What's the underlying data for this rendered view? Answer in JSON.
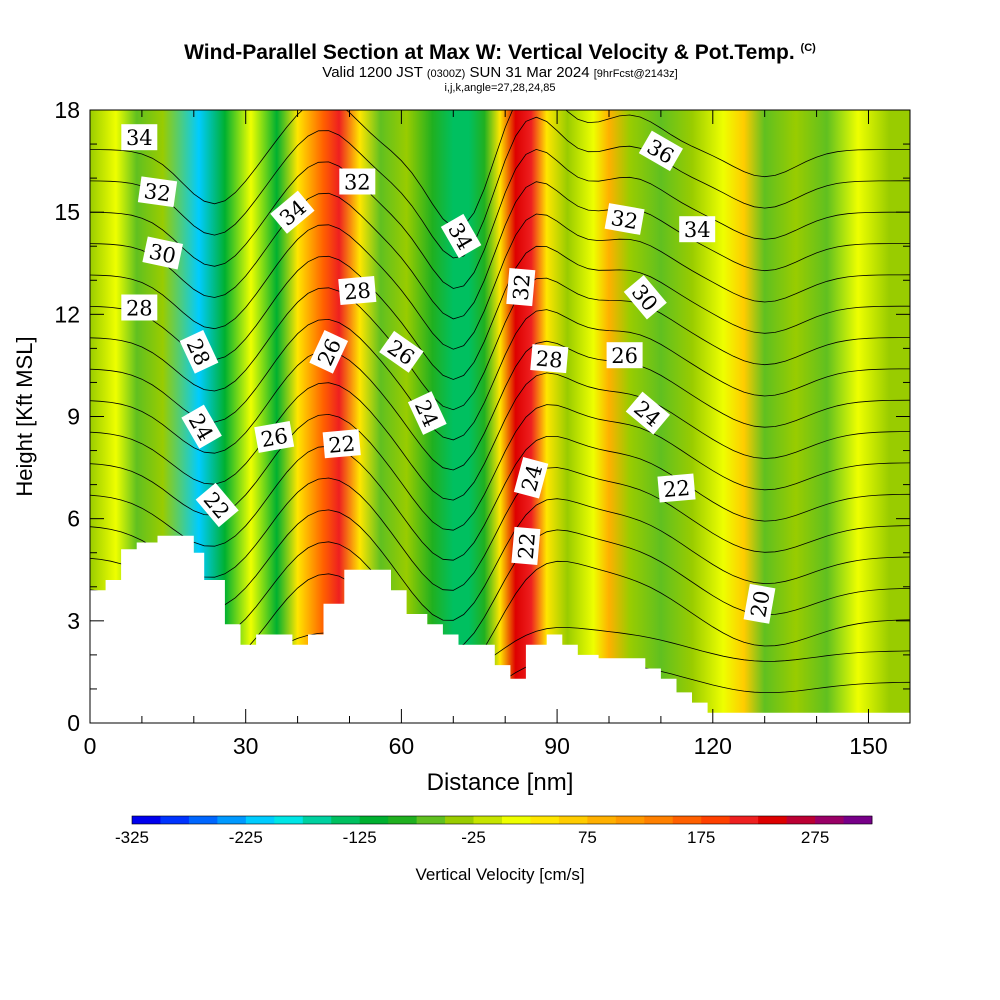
{
  "title": {
    "main": "Wind-Parallel Section at Max W: Vertical Velocity & Pot.Temp.",
    "copyright": "(C)",
    "valid_prefix": "Valid 1200 JST",
    "valid_utc": "(0300Z)",
    "valid_date": "SUN 31 Mar 2024",
    "forecast_info": "[9hrFcst@2143z]",
    "params": "i,j,k,angle=27,28,24,85"
  },
  "colors": {
    "frame": "#000000",
    "terrain": "#ffffff",
    "contour": "#000000"
  },
  "chart_data": {
    "type": "heatmap",
    "xlabel": "Distance [nm]",
    "ylabel": "Height [Kft MSL]",
    "xlim": [
      0,
      158
    ],
    "ylim": [
      0,
      18
    ],
    "x_ticks": [
      "0",
      "30",
      "60",
      "90",
      "120",
      "150"
    ],
    "y_ticks": [
      "0",
      "3",
      "6",
      "9",
      "12",
      "15",
      "18"
    ],
    "colorbar": {
      "label": "Vertical Velocity [cm/s]",
      "min": -325,
      "max": 325,
      "step": 25,
      "tick_labels": [
        "-325",
        "-225",
        "-125",
        "-25",
        "75",
        "175",
        "275"
      ],
      "colors": [
        "#0000ee",
        "#0033ff",
        "#0066ff",
        "#0099ff",
        "#00ccff",
        "#00e6e6",
        "#00d1a0",
        "#00c060",
        "#00b030",
        "#20b020",
        "#60c020",
        "#99cc00",
        "#c6e400",
        "#eeff00",
        "#ffe600",
        "#ffcc00",
        "#ffb000",
        "#ff9900",
        "#ff8000",
        "#ff6000",
        "#ff4000",
        "#ee2020",
        "#dd0000",
        "#bb0033",
        "#990066",
        "#770088"
      ]
    },
    "vertical_velocity_bands": [
      {
        "x": 0,
        "w": -40
      },
      {
        "x": 5,
        "w": 20
      },
      {
        "x": 9,
        "w": -60
      },
      {
        "x": 14,
        "w": -40
      },
      {
        "x": 21,
        "w": -210
      },
      {
        "x": 26,
        "w": -120
      },
      {
        "x": 31,
        "w": 10
      },
      {
        "x": 36,
        "w": -110
      },
      {
        "x": 40,
        "w": 40
      },
      {
        "x": 45,
        "w": 170
      },
      {
        "x": 48,
        "w": 210
      },
      {
        "x": 52,
        "w": 30
      },
      {
        "x": 56,
        "w": -60
      },
      {
        "x": 61,
        "w": -30
      },
      {
        "x": 66,
        "w": -90
      },
      {
        "x": 70,
        "w": -140
      },
      {
        "x": 73,
        "w": -150
      },
      {
        "x": 76,
        "w": -90
      },
      {
        "x": 79,
        "w": 40
      },
      {
        "x": 82,
        "w": 240
      },
      {
        "x": 85,
        "w": 200
      },
      {
        "x": 88,
        "w": 40
      },
      {
        "x": 92,
        "w": -30
      },
      {
        "x": 97,
        "w": 20
      },
      {
        "x": 100,
        "w": 80
      },
      {
        "x": 104,
        "w": -40
      },
      {
        "x": 110,
        "w": -70
      },
      {
        "x": 116,
        "w": -40
      },
      {
        "x": 122,
        "w": 10
      },
      {
        "x": 126,
        "w": 60
      },
      {
        "x": 130,
        "w": -60
      },
      {
        "x": 136,
        "w": -30
      },
      {
        "x": 142,
        "w": -70
      },
      {
        "x": 148,
        "w": 20
      },
      {
        "x": 154,
        "w": -40
      },
      {
        "x": 158,
        "w": -40
      }
    ],
    "terrain_height": [
      {
        "x": 0,
        "y": 3.9
      },
      {
        "x": 3,
        "y": 3.9
      },
      {
        "x": 3,
        "y": 4.2
      },
      {
        "x": 6,
        "y": 4.2
      },
      {
        "x": 6,
        "y": 5.1
      },
      {
        "x": 9,
        "y": 5.1
      },
      {
        "x": 9,
        "y": 5.3
      },
      {
        "x": 13,
        "y": 5.3
      },
      {
        "x": 13,
        "y": 5.5
      },
      {
        "x": 20,
        "y": 5.5
      },
      {
        "x": 20,
        "y": 5.0
      },
      {
        "x": 22,
        "y": 5.0
      },
      {
        "x": 22,
        "y": 4.2
      },
      {
        "x": 26,
        "y": 4.2
      },
      {
        "x": 26,
        "y": 2.9
      },
      {
        "x": 29,
        "y": 2.9
      },
      {
        "x": 29,
        "y": 2.3
      },
      {
        "x": 32,
        "y": 2.3
      },
      {
        "x": 32,
        "y": 2.6
      },
      {
        "x": 39,
        "y": 2.6
      },
      {
        "x": 39,
        "y": 2.3
      },
      {
        "x": 42,
        "y": 2.3
      },
      {
        "x": 42,
        "y": 2.6
      },
      {
        "x": 45,
        "y": 2.6
      },
      {
        "x": 45,
        "y": 3.5
      },
      {
        "x": 49,
        "y": 3.5
      },
      {
        "x": 49,
        "y": 4.5
      },
      {
        "x": 58,
        "y": 4.5
      },
      {
        "x": 58,
        "y": 3.9
      },
      {
        "x": 61,
        "y": 3.9
      },
      {
        "x": 61,
        "y": 3.2
      },
      {
        "x": 65,
        "y": 3.2
      },
      {
        "x": 65,
        "y": 2.9
      },
      {
        "x": 68,
        "y": 2.9
      },
      {
        "x": 68,
        "y": 2.6
      },
      {
        "x": 71,
        "y": 2.6
      },
      {
        "x": 71,
        "y": 2.3
      },
      {
        "x": 78,
        "y": 2.3
      },
      {
        "x": 78,
        "y": 1.7
      },
      {
        "x": 81,
        "y": 1.7
      },
      {
        "x": 81,
        "y": 1.3
      },
      {
        "x": 84,
        "y": 1.3
      },
      {
        "x": 84,
        "y": 2.3
      },
      {
        "x": 88,
        "y": 2.3
      },
      {
        "x": 88,
        "y": 2.6
      },
      {
        "x": 91,
        "y": 2.6
      },
      {
        "x": 91,
        "y": 2.3
      },
      {
        "x": 94,
        "y": 2.3
      },
      {
        "x": 94,
        "y": 2.0
      },
      {
        "x": 98,
        "y": 2.0
      },
      {
        "x": 98,
        "y": 1.9
      },
      {
        "x": 107,
        "y": 1.9
      },
      {
        "x": 107,
        "y": 1.6
      },
      {
        "x": 110,
        "y": 1.6
      },
      {
        "x": 110,
        "y": 1.3
      },
      {
        "x": 113,
        "y": 1.3
      },
      {
        "x": 113,
        "y": 0.9
      },
      {
        "x": 116,
        "y": 0.9
      },
      {
        "x": 116,
        "y": 0.6
      },
      {
        "x": 119,
        "y": 0.6
      },
      {
        "x": 119,
        "y": 0.3
      },
      {
        "x": 158,
        "y": 0.3
      }
    ],
    "contour_levels": [
      20,
      21,
      22,
      23,
      24,
      25,
      26,
      27,
      28,
      29,
      30,
      31,
      32,
      33,
      34,
      35,
      36,
      37
    ],
    "contour_labels": [
      {
        "text": "34",
        "x": 9.5,
        "y": 17.2,
        "angle": 0
      },
      {
        "text": "32",
        "x": 13,
        "y": 15.6,
        "angle": 8
      },
      {
        "text": "30",
        "x": 14,
        "y": 13.8,
        "angle": 12
      },
      {
        "text": "28",
        "x": 9.5,
        "y": 12.2,
        "angle": 0
      },
      {
        "text": "28",
        "x": 21,
        "y": 10.9,
        "angle": 65
      },
      {
        "text": "24",
        "x": 21.5,
        "y": 8.7,
        "angle": 60
      },
      {
        "text": "22",
        "x": 24.5,
        "y": 6.4,
        "angle": 50
      },
      {
        "text": "34",
        "x": 39,
        "y": 15.0,
        "angle": -40
      },
      {
        "text": "32",
        "x": 51.5,
        "y": 15.9,
        "angle": 0
      },
      {
        "text": "28",
        "x": 51.5,
        "y": 12.7,
        "angle": -5
      },
      {
        "text": "26",
        "x": 46,
        "y": 10.9,
        "angle": -65
      },
      {
        "text": "26",
        "x": 35.5,
        "y": 8.4,
        "angle": -10
      },
      {
        "text": "22",
        "x": 48.5,
        "y": 8.2,
        "angle": -5
      },
      {
        "text": "26",
        "x": 60,
        "y": 10.9,
        "angle": 35
      },
      {
        "text": "34",
        "x": 71.5,
        "y": 14.3,
        "angle": 60
      },
      {
        "text": "24",
        "x": 65,
        "y": 9.1,
        "angle": 65
      },
      {
        "text": "32",
        "x": 83,
        "y": 12.8,
        "angle": -85
      },
      {
        "text": "28",
        "x": 88.5,
        "y": 10.7,
        "angle": 5
      },
      {
        "text": "24",
        "x": 85,
        "y": 7.2,
        "angle": -75
      },
      {
        "text": "22",
        "x": 84,
        "y": 5.2,
        "angle": -85
      },
      {
        "text": "36",
        "x": 110,
        "y": 16.8,
        "angle": 30
      },
      {
        "text": "32",
        "x": 103,
        "y": 14.8,
        "angle": 10
      },
      {
        "text": "34",
        "x": 117,
        "y": 14.5,
        "angle": 0
      },
      {
        "text": "30",
        "x": 107,
        "y": 12.5,
        "angle": 50
      },
      {
        "text": "26",
        "x": 103,
        "y": 10.8,
        "angle": 0
      },
      {
        "text": "24",
        "x": 107.5,
        "y": 9.1,
        "angle": 40
      },
      {
        "text": "22",
        "x": 113,
        "y": 6.9,
        "angle": -5
      },
      {
        "text": "20",
        "x": 129,
        "y": 3.5,
        "angle": -80
      }
    ]
  }
}
